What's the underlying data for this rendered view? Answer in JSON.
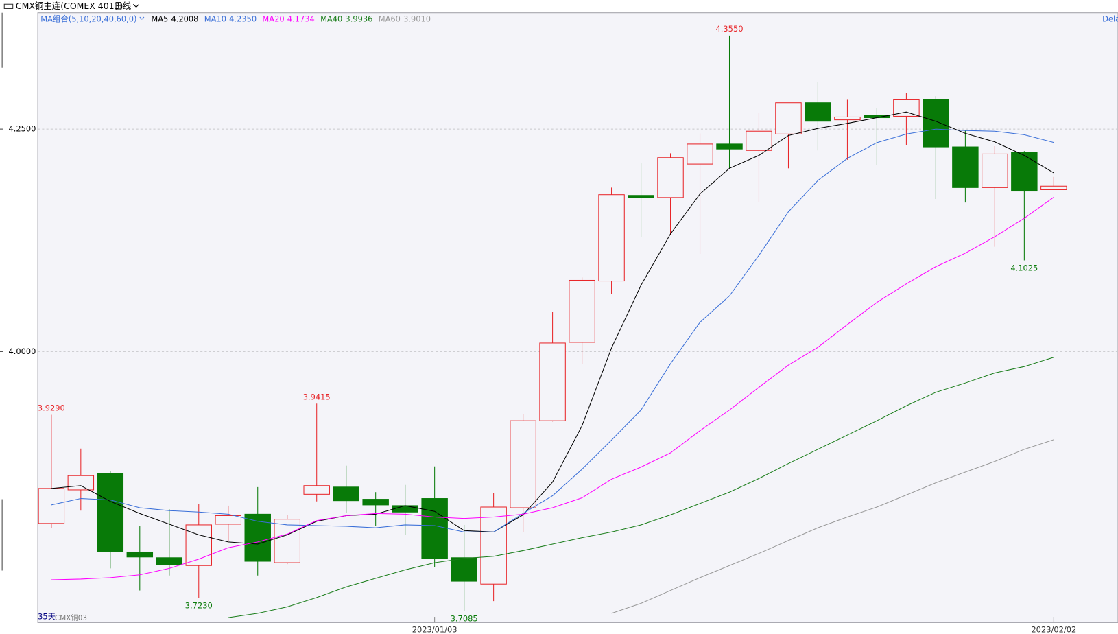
{
  "chart_data": {
    "type": "candlestick",
    "title": "CMX铜主连(COMEX 4013)",
    "period": "日线",
    "ma_group": "MA组合(5,10,20,40,60,0)",
    "days": "35天",
    "contract": "CMX铜03",
    "corner_text": "Dela",
    "up_color": "#e8262a",
    "down_color": "#087a08",
    "grid": true,
    "ylim": [
      3.6955,
      4.3806
    ],
    "yticks": [
      {
        "value": 4.0,
        "label": "4.0000"
      },
      {
        "value": 4.25,
        "label": "4.2500"
      }
    ],
    "categories": [
      null,
      null,
      null,
      null,
      null,
      null,
      null,
      null,
      null,
      null,
      null,
      null,
      null,
      "2023/01/03",
      null,
      null,
      null,
      null,
      null,
      null,
      null,
      null,
      null,
      null,
      null,
      null,
      null,
      null,
      null,
      null,
      null,
      null,
      null,
      null,
      "2023/02/02"
    ],
    "open": [
      3.8069,
      3.8446,
      3.863,
      3.7748,
      3.7684,
      3.7596,
      3.8061,
      3.8173,
      3.7628,
      3.8397,
      3.8478,
      3.8341,
      3.8269,
      3.8349,
      3.7684,
      3.7388,
      3.8245,
      3.9223,
      4.0104,
      4.0793,
      4.1755,
      4.1731,
      4.2107,
      4.2332,
      4.226,
      4.2444,
      4.2796,
      4.2604,
      4.2652,
      4.2644,
      4.2829,
      4.23,
      4.1843,
      4.2236,
      4.1819
    ],
    "high": [
      3.929,
      3.891,
      3.8662,
      3.8037,
      3.8229,
      3.8285,
      3.8269,
      3.8478,
      3.8165,
      3.9415,
      3.8718,
      3.8421,
      3.8502,
      3.871,
      3.8053,
      3.8413,
      3.9295,
      4.0449,
      4.0833,
      4.1843,
      4.2115,
      4.2228,
      4.2452,
      4.355,
      4.2684,
      4.2796,
      4.3029,
      4.2829,
      4.2732,
      4.2909,
      4.2869,
      4.2492,
      4.2308,
      4.2252,
      4.1963
    ],
    "low": [
      3.8021,
      3.8213,
      3.7564,
      3.7316,
      3.7484,
      3.723,
      3.7869,
      3.7484,
      3.7612,
      3.8317,
      3.8189,
      3.8037,
      3.7941,
      3.758,
      3.7085,
      3.7196,
      3.7973,
      3.9215,
      3.9864,
      4.0649,
      4.1282,
      4.1306,
      4.1098,
      4.2059,
      4.1675,
      4.2059,
      4.226,
      4.2155,
      4.2099,
      4.2316,
      4.1715,
      4.1675,
      4.1178,
      4.1025,
      4.1819
    ],
    "close": [
      3.8462,
      3.8606,
      3.7756,
      3.7692,
      3.7604,
      3.8053,
      3.8157,
      3.7644,
      3.8117,
      3.8494,
      3.8325,
      3.8277,
      3.8197,
      3.7676,
      3.742,
      3.8253,
      3.9223,
      4.0096,
      4.0801,
      4.1763,
      4.1731,
      4.2179,
      4.2332,
      4.2276,
      4.2476,
      4.2796,
      4.2588,
      4.2636,
      4.2628,
      4.2829,
      4.23,
      4.1843,
      4.222,
      4.1803,
      4.1859
    ],
    "annotations": [
      {
        "value": 3.929,
        "label": "3.9290"
      },
      {
        "value": 3.9415,
        "label": "3.9415"
      },
      {
        "value": 4.355,
        "label": "4.3550"
      },
      {
        "value": 3.723,
        "label": "3.7230"
      },
      {
        "value": 3.7085,
        "label": "3.7085"
      },
      {
        "value": 4.1025,
        "label": "4.1025"
      }
    ],
    "series": [
      {
        "name": "MA5",
        "color": "#000000",
        "value_label": "4.2008",
        "values": [
          3.8462,
          3.8494,
          3.8317,
          3.8181,
          3.8061,
          3.7941,
          3.7861,
          3.7837,
          3.7941,
          3.8093,
          3.8157,
          3.8173,
          3.8269,
          3.8205,
          3.7989,
          3.7973,
          3.8165,
          3.8534,
          3.9167,
          4.004,
          4.0745,
          4.1322,
          4.1771,
          4.2059,
          4.2204,
          4.2428,
          4.2508,
          4.2564,
          4.2628,
          4.2692,
          4.2588,
          4.2452,
          4.2356,
          4.2204,
          4.2008
        ]
      },
      {
        "name": "MA10",
        "color": "#3a6fd8",
        "value_label": "4.2350",
        "values": [
          3.8277,
          3.8349,
          3.8333,
          3.8245,
          3.8213,
          3.8197,
          3.8173,
          3.8093,
          3.8053,
          3.8045,
          3.8037,
          3.8021,
          3.8053,
          3.8045,
          3.7973,
          3.7973,
          3.8181,
          3.8381,
          3.8678,
          3.9006,
          3.9343,
          3.9864,
          4.0329,
          4.0625,
          4.1082,
          4.1571,
          4.1923,
          4.2171,
          4.2348,
          4.2444,
          4.25,
          4.2484,
          4.2476,
          4.2436,
          4.235
        ]
      },
      {
        "name": "MA20",
        "color": "#ff00ff",
        "value_label": "4.1734",
        "values": [
          3.7436,
          3.7444,
          3.746,
          3.7492,
          3.7564,
          3.7668,
          3.7796,
          3.7861,
          3.7949,
          3.8101,
          3.8157,
          3.8181,
          3.8173,
          3.8141,
          3.8125,
          3.8141,
          3.8173,
          3.8245,
          3.8357,
          3.8566,
          3.8702,
          3.8862,
          3.9111,
          3.9343,
          3.9599,
          3.9848,
          4.0048,
          4.0304,
          4.0553,
          4.0761,
          4.0954,
          4.1106,
          4.129,
          4.1498,
          4.1734
        ]
      },
      {
        "name": "MA40",
        "color": "#1a7d1a",
        "value_label": "3.9936",
        "values": [
          null,
          null,
          null,
          null,
          null,
          null,
          3.7011,
          3.7059,
          3.7131,
          3.7236,
          3.7356,
          3.7452,
          3.7548,
          3.7628,
          3.7676,
          3.77,
          3.7764,
          3.7837,
          3.7909,
          3.7973,
          3.8053,
          3.8165,
          3.8293,
          3.8421,
          3.8574,
          3.8742,
          3.8902,
          3.9062,
          3.9223,
          3.9391,
          3.9543,
          3.9647,
          3.976,
          3.9832,
          3.9936
        ]
      },
      {
        "name": "MA60",
        "color": "#999999",
        "value_label": "3.9010",
        "values": [
          null,
          null,
          null,
          null,
          null,
          null,
          null,
          null,
          null,
          null,
          null,
          null,
          null,
          null,
          null,
          null,
          null,
          null,
          null,
          3.7059,
          3.7171,
          3.7316,
          3.746,
          3.7596,
          3.7732,
          3.7877,
          3.8021,
          3.8141,
          3.8253,
          3.8389,
          3.8526,
          3.8646,
          3.8766,
          3.8902,
          3.901
        ]
      }
    ]
  }
}
